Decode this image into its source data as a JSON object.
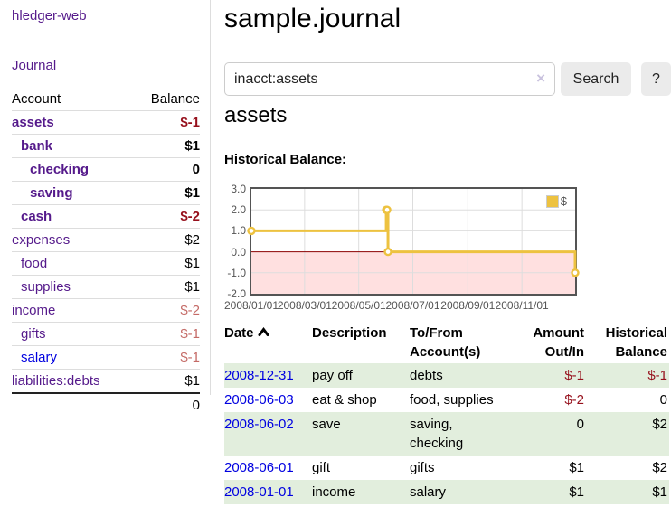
{
  "app": {
    "brand": "hledger-web"
  },
  "sidebar": {
    "nav_journal": "Journal",
    "accounts_header": {
      "account": "Account",
      "balance": "Balance"
    },
    "accounts": [
      {
        "label": "assets",
        "depth": 1,
        "bold": true,
        "balance": "$-1",
        "amount_class": "strong-neg"
      },
      {
        "label": "bank",
        "depth": 2,
        "bold": true,
        "balance": "$1",
        "amount_class": "normal"
      },
      {
        "label": "checking",
        "depth": 3,
        "bold": true,
        "balance": "0",
        "amount_class": "normal"
      },
      {
        "label": "saving",
        "depth": 3,
        "bold": true,
        "balance": "$1",
        "amount_class": "normal"
      },
      {
        "label": "cash",
        "depth": 2,
        "bold": true,
        "balance": "$-2",
        "amount_class": "strong-neg"
      },
      {
        "label": "expenses",
        "depth": 1,
        "bold": false,
        "balance": "$2",
        "amount_class": "normal"
      },
      {
        "label": "food",
        "depth": 2,
        "bold": false,
        "balance": "$1",
        "amount_class": "normal"
      },
      {
        "label": "supplies",
        "depth": 2,
        "bold": false,
        "balance": "$1",
        "amount_class": "normal"
      },
      {
        "label": "income",
        "depth": 1,
        "bold": false,
        "balance": "$-2",
        "amount_class": "soft-neg"
      },
      {
        "label": "gifts",
        "depth": 2,
        "bold": false,
        "balance": "$-1",
        "amount_class": "soft-neg"
      },
      {
        "label": "salary",
        "depth": 2,
        "bold": false,
        "balance": "$-1",
        "amount_class": "soft-neg",
        "link_color": "blue"
      },
      {
        "label": "liabilities:debts",
        "depth": 1,
        "bold": false,
        "balance": "$1",
        "amount_class": "normal"
      }
    ],
    "total": "0"
  },
  "header": {
    "title": "sample.journal"
  },
  "search": {
    "value": "inacct:assets",
    "clear_icon": "×",
    "search_label": "Search",
    "help_label": "?"
  },
  "account_page": {
    "heading": "assets",
    "chart_label": "Historical Balance:"
  },
  "chart_data": {
    "type": "line",
    "title": "Historical Balance",
    "step": true,
    "series": [
      {
        "name": "$",
        "color": "#EDC240",
        "points": [
          {
            "date": "2008-01-01",
            "value": 1
          },
          {
            "date": "2008-06-01",
            "value": 2
          },
          {
            "date": "2008-06-02",
            "value": 2
          },
          {
            "date": "2008-06-03",
            "value": 0
          },
          {
            "date": "2008-12-31",
            "value": -1
          }
        ]
      }
    ],
    "x_ticks": [
      "2008/01/01",
      "2008/03/01",
      "2008/05/01",
      "2008/07/01",
      "2008/09/01",
      "2008/11/01"
    ],
    "y_ticks": [
      3.0,
      2.0,
      1.0,
      0.0,
      -1.0,
      -2.0
    ],
    "ylim": [
      -2,
      3
    ],
    "x_range": [
      "2008-01-01",
      "2008-12-31"
    ],
    "legend": {
      "label": "$",
      "position": "top-right"
    },
    "grid": true,
    "negative_region_color": "rgba(255,0,0,0.12)",
    "zero_line_color": "#8b0000",
    "grid_color": "#dddddd",
    "border_color": "#545454"
  },
  "register": {
    "columns": [
      "Date",
      "Description",
      "To/From Account(s)",
      "Amount Out/In",
      "Historical Balance"
    ],
    "sort": {
      "column": "Date",
      "direction": "asc"
    },
    "rows": [
      {
        "date": "2008-12-31",
        "description": "pay off",
        "accounts": "debts",
        "amount": "$-1",
        "amount_negative": true,
        "balance": "$-1",
        "balance_negative": true
      },
      {
        "date": "2008-06-03",
        "description": "eat & shop",
        "accounts": "food, supplies",
        "amount": "$-2",
        "amount_negative": true,
        "balance": "0",
        "balance_negative": false
      },
      {
        "date": "2008-06-02",
        "description": "save",
        "accounts": "saving, checking",
        "amount": "0",
        "amount_negative": false,
        "balance": "$2",
        "balance_negative": false
      },
      {
        "date": "2008-06-01",
        "description": "gift",
        "accounts": "gifts",
        "amount": "$1",
        "amount_negative": false,
        "balance": "$2",
        "balance_negative": false
      },
      {
        "date": "2008-01-01",
        "description": "income",
        "accounts": "salary",
        "amount": "$1",
        "amount_negative": false,
        "balance": "$1",
        "balance_negative": false
      }
    ]
  },
  "colors": {
    "link_purple": "#551A8B",
    "link_blue": "#0000e0",
    "negative_strong": "#96101c",
    "negative_soft": "#c46a66",
    "row_stripe_green": "#e2eedd",
    "series_yellow": "#EDC240"
  }
}
